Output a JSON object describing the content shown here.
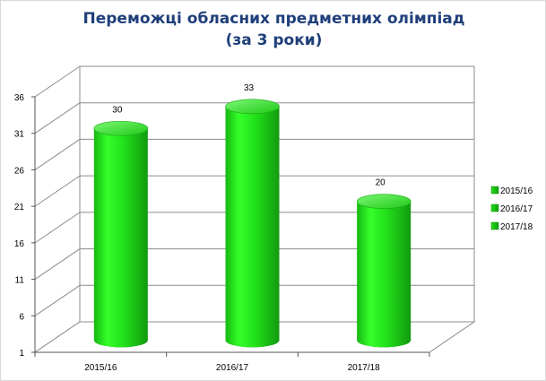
{
  "title_line1": "Переможці обласних предметних олімпіад",
  "title_line2": "(за 3 роки)",
  "chart_data": {
    "type": "bar",
    "style": "3d-cylinder",
    "title": "Переможці обласних предметних олімпіад (за 3 роки)",
    "categories": [
      "2015/16",
      "2016/17",
      "2017/18"
    ],
    "values": [
      30,
      33,
      20
    ],
    "data_labels": [
      "30",
      "33",
      "20"
    ],
    "y_ticks": [
      1,
      6,
      11,
      16,
      21,
      26,
      31,
      36
    ],
    "y_tick_labels": [
      "1",
      "6",
      "11",
      "16",
      "21",
      "26",
      "31",
      "36"
    ],
    "ylim": [
      1,
      36
    ],
    "xlabel": "",
    "ylabel": "",
    "grid": true,
    "legend_position": "right",
    "legend": [
      "2015/16",
      "2016/17",
      "2017/18"
    ],
    "colors": {
      "bar": "#22e01a",
      "bar_dark": "#0f8a0c",
      "bar_light": "#8dfb86",
      "grid": "#8c8c8c",
      "title": "#1f3f7a"
    }
  }
}
